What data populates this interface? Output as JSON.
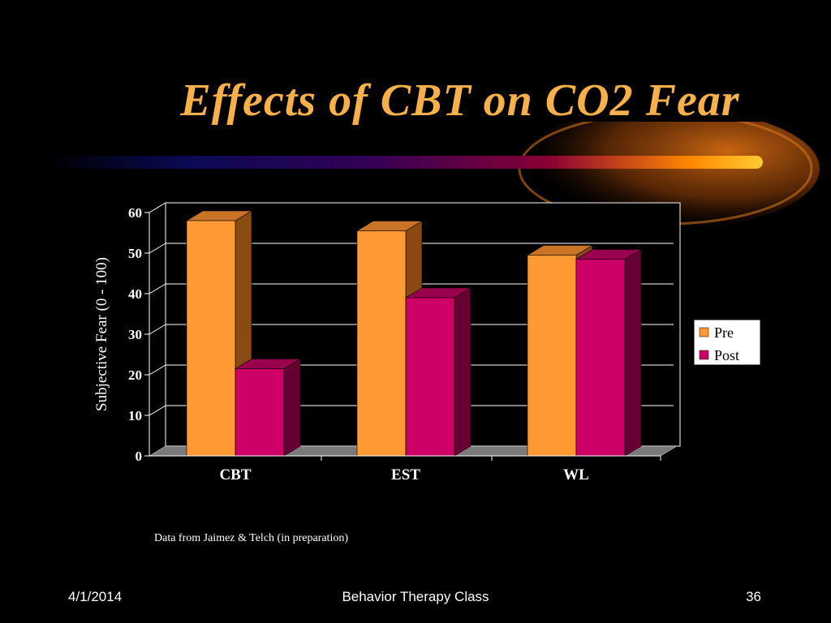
{
  "slide": {
    "title": "Effects of CBT on CO2 Fear",
    "caption": "Data from Jaimez & Telch (in preparation)",
    "footer_date": "4/1/2014",
    "footer_center": "Behavior Therapy Class",
    "footer_page": "36"
  },
  "colors": {
    "background": "#000000",
    "title": "#f8b04a",
    "pre_front": "#ff9933",
    "pre_side": "#8a4a12",
    "pre_top": "#c97426",
    "post_front": "#cc0066",
    "post_side": "#660033",
    "post_top": "#99004d",
    "floor": "#7a7a7a",
    "gridline": "#ffffff",
    "legend_bg": "#ffffff"
  },
  "chart_data": {
    "type": "bar",
    "categories": [
      "CBT",
      "EST",
      "WL"
    ],
    "series": [
      {
        "name": "Pre",
        "values": [
          58,
          55.5,
          49.5
        ]
      },
      {
        "name": "Post",
        "values": [
          21.5,
          39,
          48.5
        ]
      }
    ],
    "title": "",
    "xlabel": "",
    "ylabel": "Subjective Fear (0 - 100)",
    "ylim": [
      0,
      60
    ],
    "yticks": [
      0,
      10,
      20,
      30,
      40,
      50,
      60
    ],
    "grid": true,
    "legend": "right",
    "style": "3d"
  }
}
